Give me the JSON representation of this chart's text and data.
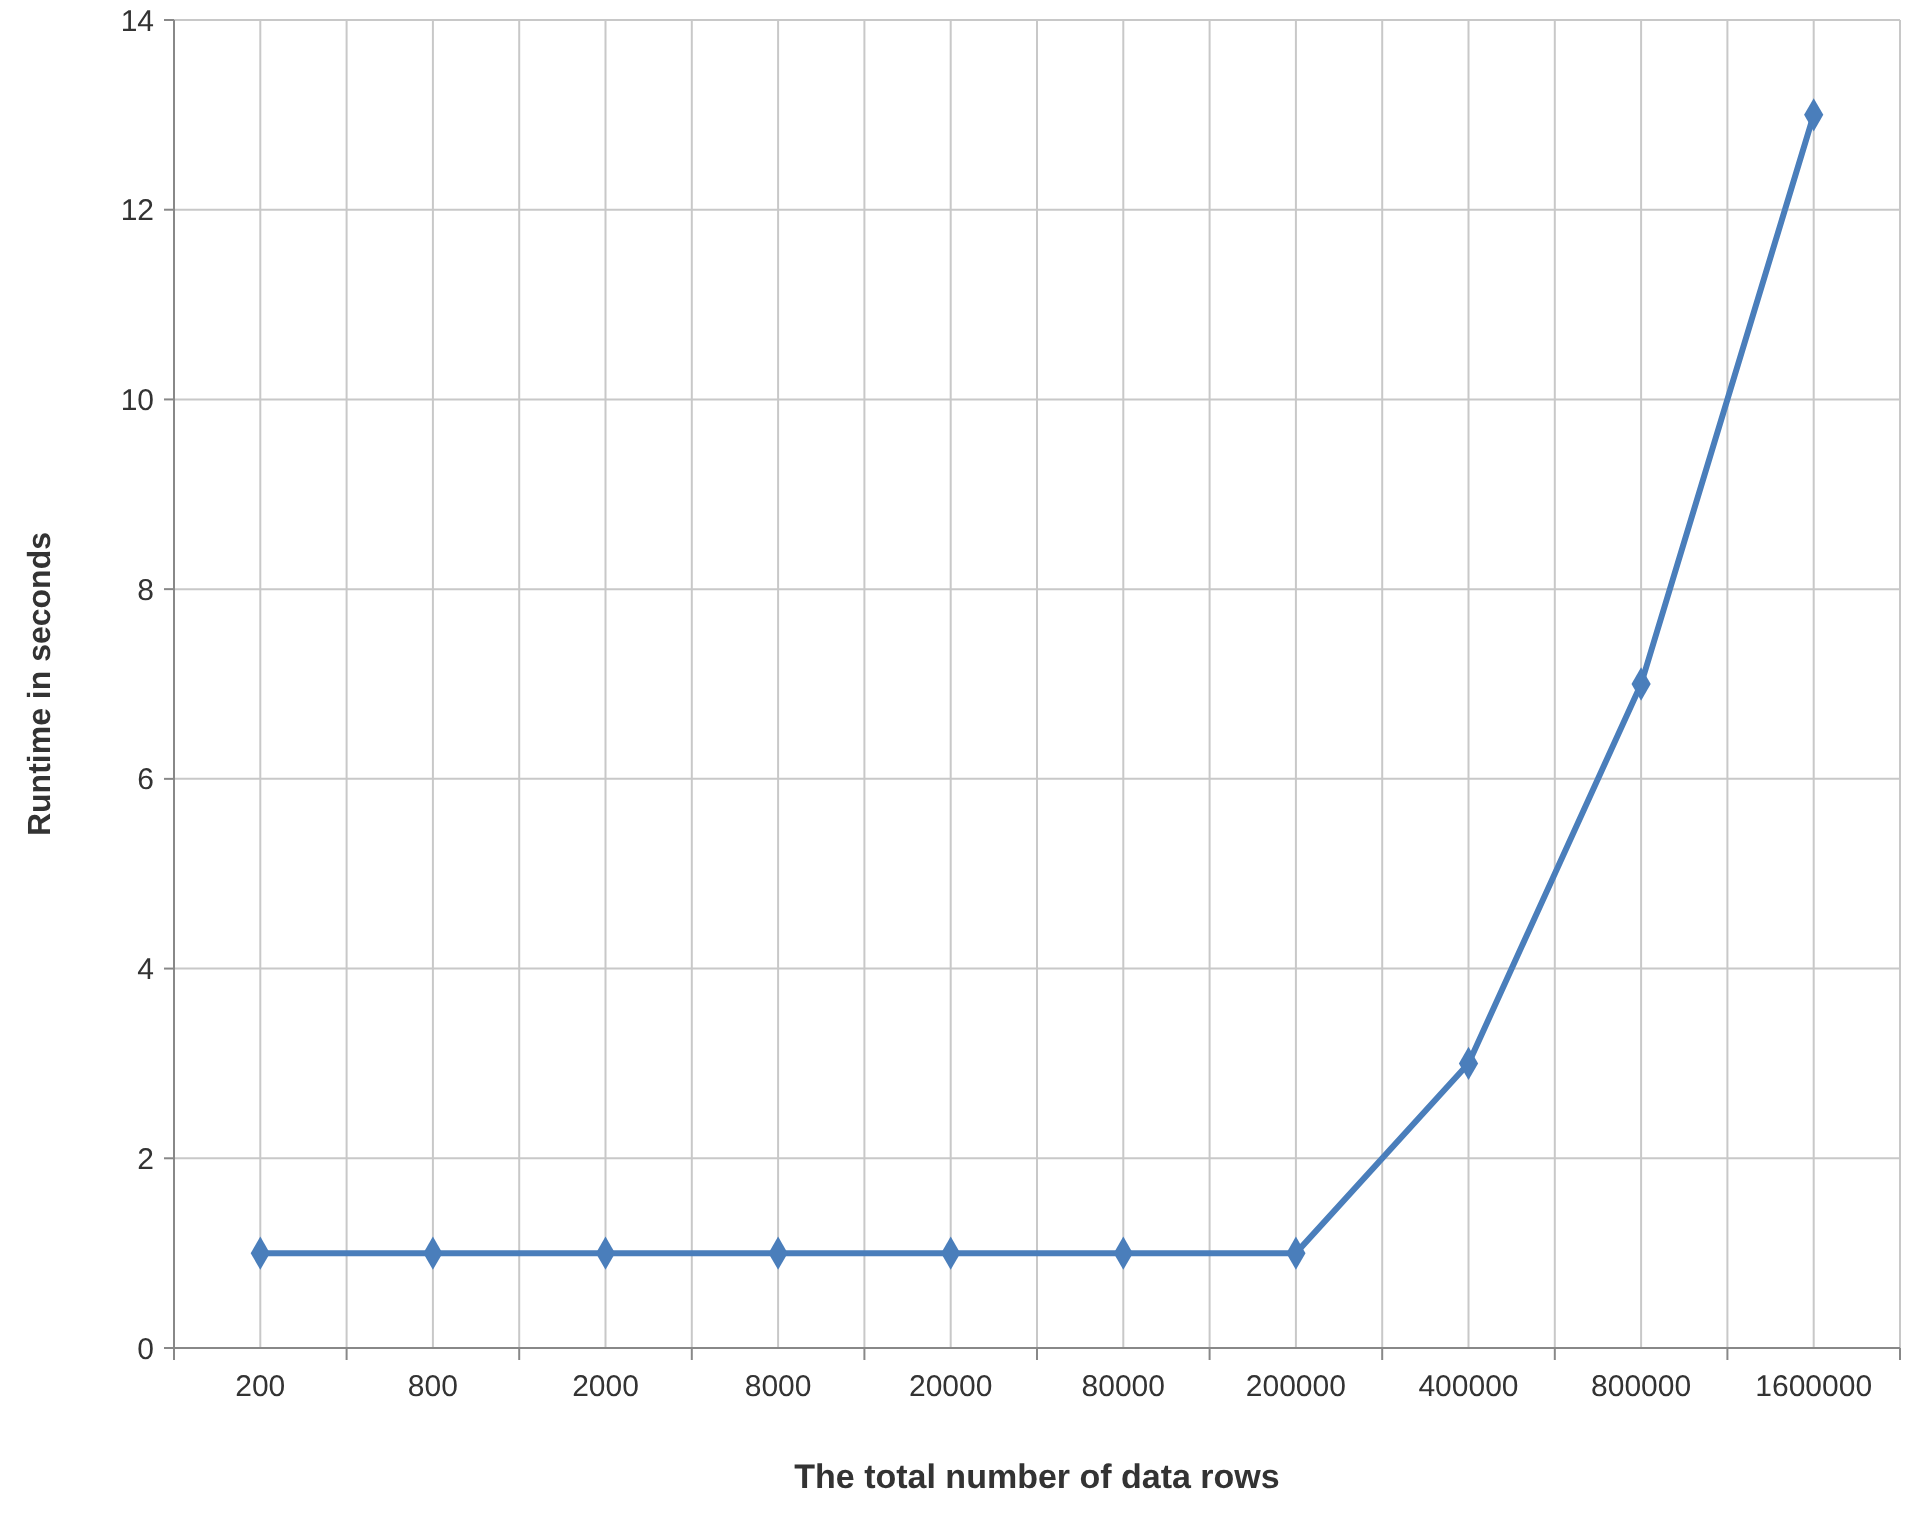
{
  "chart_data": {
    "type": "line",
    "xlabel": "The total number of data rows",
    "ylabel": "Runtime in seconds",
    "categories": [
      "200",
      "800",
      "2000",
      "8000",
      "20000",
      "80000",
      "200000",
      "400000",
      "800000",
      "1600000"
    ],
    "series": [
      {
        "color": "#4a7ebb",
        "values": [
          1,
          1,
          1,
          1,
          1,
          1,
          1,
          3,
          7,
          13
        ]
      }
    ],
    "ylim": [
      0,
      14
    ],
    "yticks": [
      0,
      2,
      4,
      6,
      8,
      10,
      12,
      14
    ],
    "grid": true,
    "marker": "diamond",
    "line_style": "solid"
  }
}
